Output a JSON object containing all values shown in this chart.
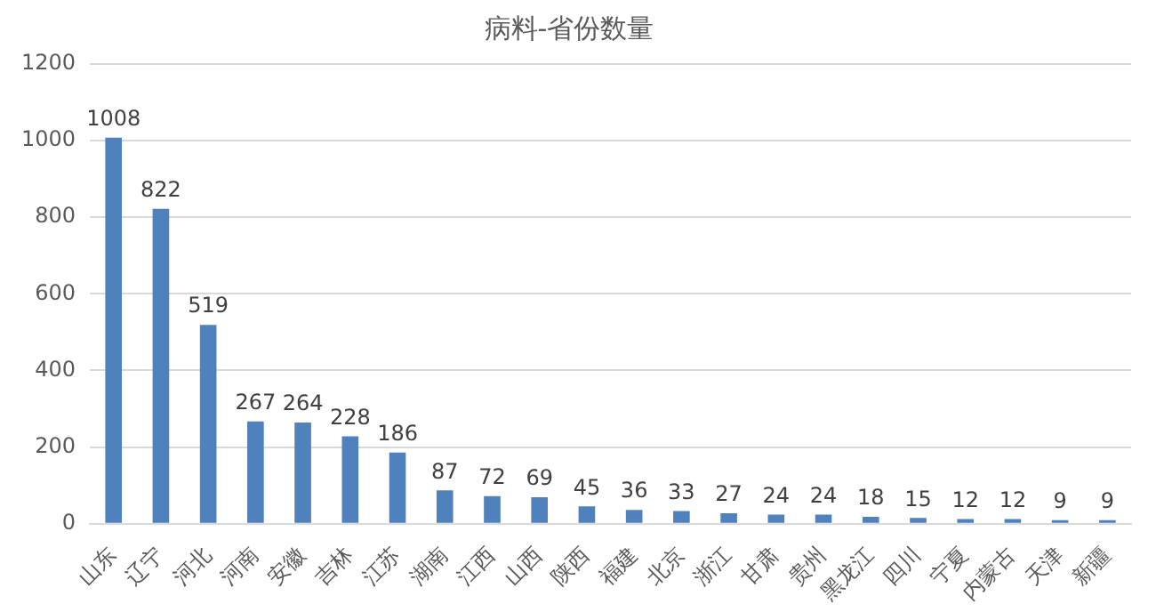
{
  "chart_data": {
    "type": "bar",
    "title": "病料-省份数量",
    "categories": [
      "山东",
      "辽宁",
      "河北",
      "河南",
      "安徽",
      "吉林",
      "江苏",
      "湖南",
      "江西",
      "山西",
      "陕西",
      "福建",
      "北京",
      "浙江",
      "甘肃",
      "贵州",
      "黑龙江",
      "四川",
      "宁夏",
      "内蒙古",
      "天津",
      "新疆"
    ],
    "values": [
      1008,
      822,
      519,
      267,
      264,
      228,
      186,
      87,
      72,
      69,
      45,
      36,
      33,
      27,
      24,
      24,
      18,
      15,
      12,
      12,
      9,
      9
    ],
    "color": "#4f81bd",
    "ylim": [
      0,
      1200
    ],
    "yticks": [
      0,
      200,
      400,
      600,
      800,
      1000,
      1200
    ],
    "grid": "y",
    "data_labels": true
  }
}
